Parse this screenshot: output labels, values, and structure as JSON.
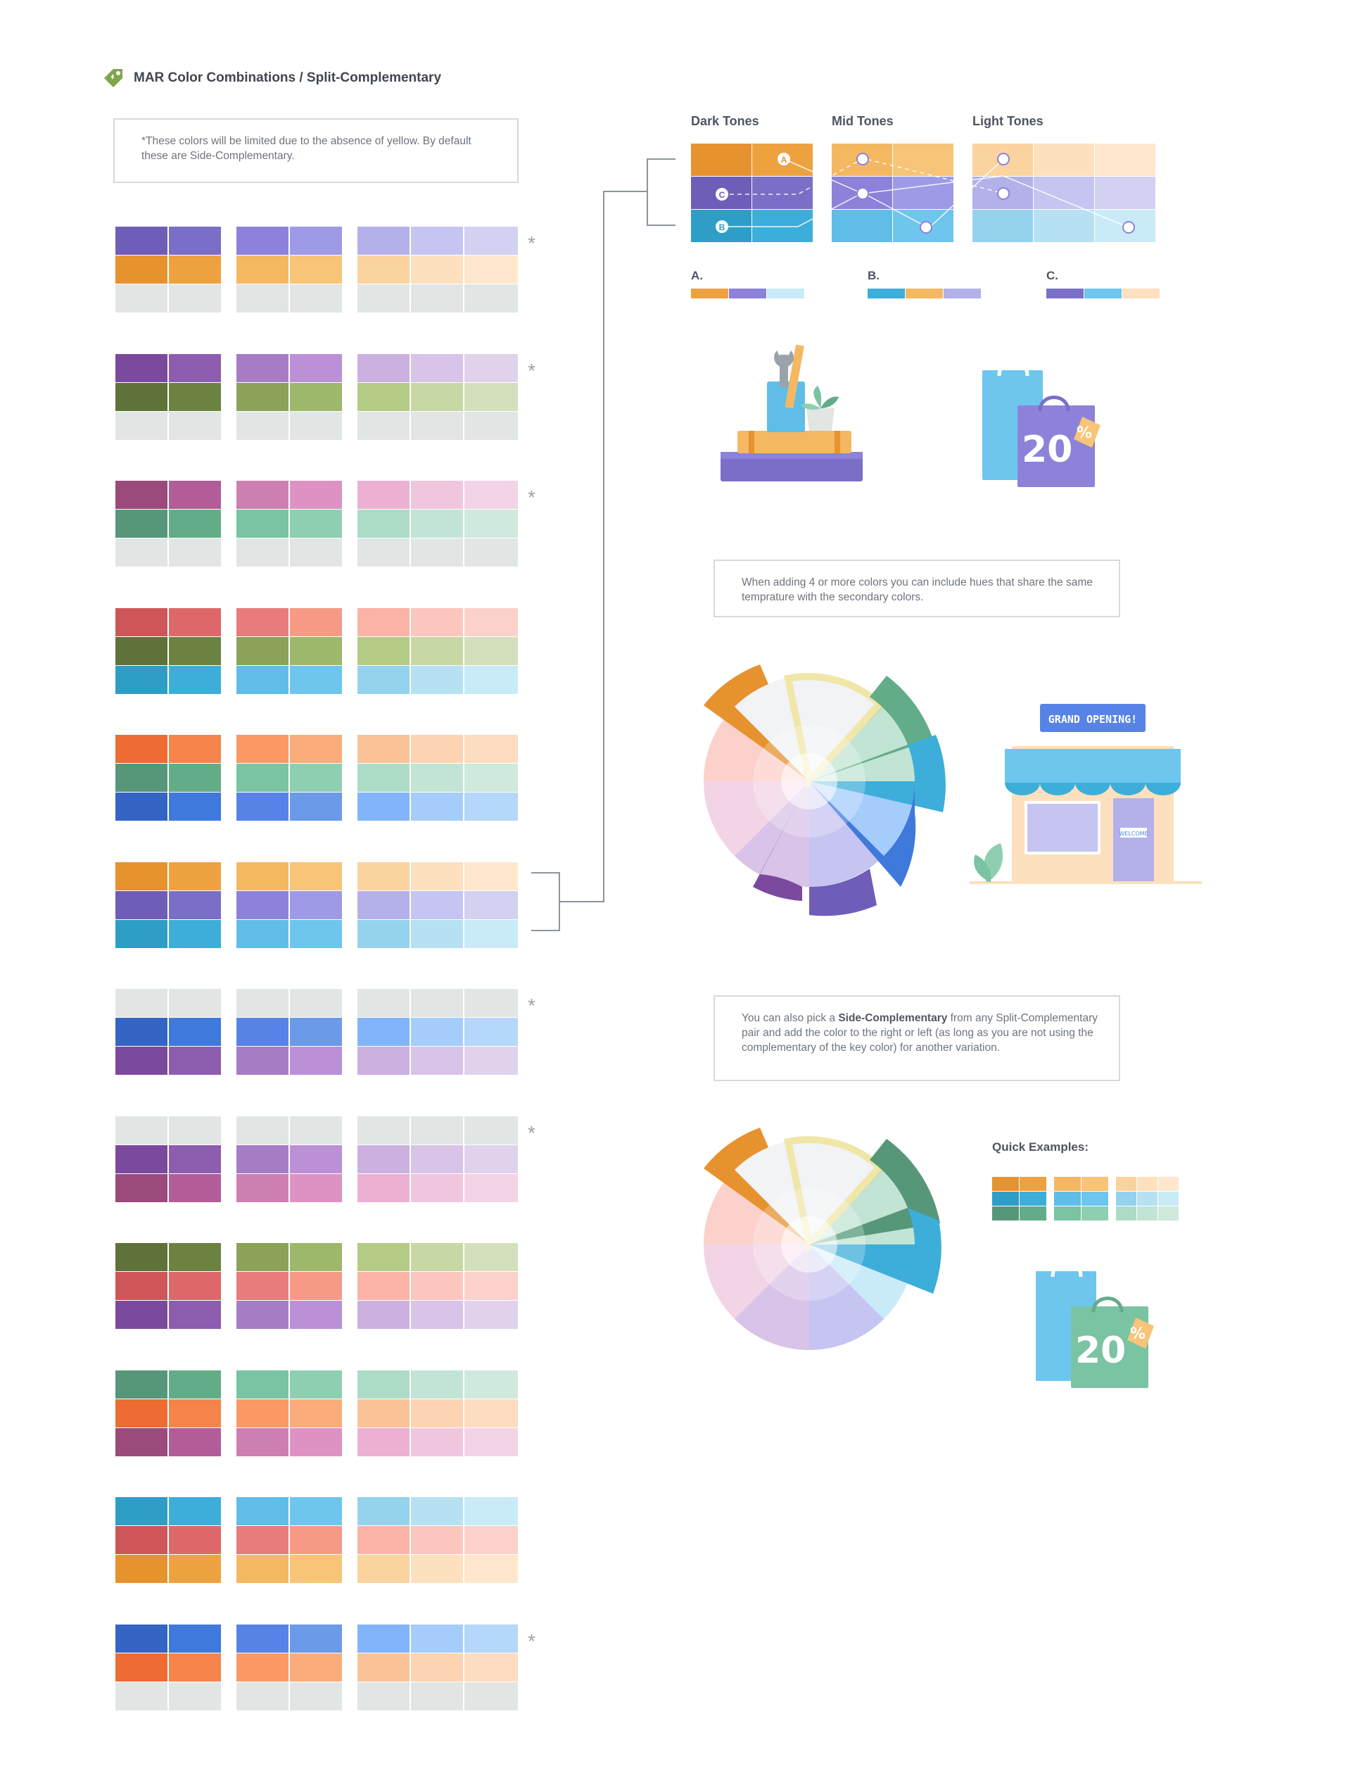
{
  "header": {
    "title": "MAR Color Combinations / Split-Complementary",
    "icon": "tag-icon"
  },
  "notes": {
    "yellow_note": "*These colors will be limited due to the absence of yellow. By default these are Side-Complementary.",
    "temperature_note": "When adding 4 or more colors you can include hues that share the same temprature with the secondary colors.",
    "side_note_pre": "You can also pick a ",
    "side_note_bold": "Side-Complementary",
    "side_note_post": " from any Split-Complementary pair and add the color to the right or left (as long as you are not using the complementary of the key color) for another variation."
  },
  "tones": {
    "dark": "Dark Tones",
    "mid": "Mid Tones",
    "light": "Light Tones"
  },
  "markers": {
    "a": "A",
    "b": "B",
    "c": "C"
  },
  "combo_labels": {
    "a": "A.",
    "b": "B.",
    "c": "C."
  },
  "quick_examples": "Quick Examples:",
  "illustrations": {
    "sign": "GRAND OPENING!",
    "welcome": "WELCOME",
    "discount": "20",
    "percent": "%"
  },
  "star": "*",
  "palette_rows": [
    {
      "star": true,
      "rows": [
        [
          "#6f5db8",
          "#7a6fc7",
          "#8c82d9",
          "#9d9ae6",
          "#b3b0ea",
          "#c6c4f0",
          "#d2d1f2"
        ],
        [
          "#e6922f",
          "#eea23f",
          "#f5b862",
          "#f8c478",
          "#fbd39e",
          "#fde0bd",
          "#fee7cd"
        ],
        [
          "#e1e6e5",
          "#e1e6e5",
          "#e1e6e5",
          "#e1e6e5",
          "#e1e6e5",
          "#e1e6e5",
          "#e1e6e5"
        ]
      ]
    },
    {
      "star": true,
      "rows": [
        [
          "#7b4a9e",
          "#8d5db0",
          "#a67cc4",
          "#bb90d6",
          "#cbb0e0",
          "#d9c3e8",
          "#e1d2ec"
        ],
        [
          "#5e7239",
          "#6c8240",
          "#8aa358",
          "#9db86a",
          "#b3cb85",
          "#c7d8a4",
          "#d4e0bb"
        ],
        [
          "#e1e6e5",
          "#e1e6e5",
          "#e1e6e5",
          "#e1e6e5",
          "#e1e6e5",
          "#e1e6e5",
          "#e1e6e5"
        ]
      ]
    },
    {
      "star": true,
      "rows": [
        [
          "#9b4a7c",
          "#b25d97",
          "#cc7fb0",
          "#de92c3",
          "#ecb0d2",
          "#f0c6de",
          "#f3d4e6"
        ],
        [
          "#56977a",
          "#62ad88",
          "#7ac3a3",
          "#8dcfb0",
          "#acdcc6",
          "#c2e4d4",
          "#cfe9dc"
        ],
        [
          "#e1e6e5",
          "#e1e6e5",
          "#e1e6e5",
          "#e1e6e5",
          "#e1e6e5",
          "#e1e6e5",
          "#e1e6e5"
        ]
      ]
    },
    {
      "star": false,
      "rows": [
        [
          "#cf5658",
          "#de6869",
          "#e87b7b",
          "#f79a85",
          "#fbb3a8",
          "#fcc6be",
          "#fcd1cb"
        ],
        [
          "#5e7239",
          "#6c8240",
          "#8aa358",
          "#9db86a",
          "#b3cb85",
          "#c7d8a4",
          "#d4e0bb"
        ],
        [
          "#2e9ec7",
          "#3daed9",
          "#5fbde8",
          "#6ec6ee",
          "#94d2ee",
          "#b6e1f3",
          "#c9ebf7"
        ]
      ]
    },
    {
      "star": false,
      "rows": [
        [
          "#ee6b33",
          "#f6844a",
          "#fb9966",
          "#fcab7b",
          "#fcc298",
          "#fdd3b2",
          "#fedcc2"
        ],
        [
          "#56977a",
          "#62ad88",
          "#7ac3a3",
          "#8dcfb0",
          "#acdcc6",
          "#c2e4d4",
          "#cfe9dc"
        ],
        [
          "#3465c5",
          "#3f79dc",
          "#5783e6",
          "#6a9ae8",
          "#82b4fb",
          "#a5cdfc",
          "#b6d7fc"
        ]
      ]
    },
    {
      "star": false,
      "rows": [
        [
          "#e6922f",
          "#eea23f",
          "#f5b862",
          "#f8c478",
          "#fbd39e",
          "#fde0bd",
          "#fee7cd"
        ],
        [
          "#6f5db8",
          "#7a6fc7",
          "#8c82d9",
          "#9d9ae6",
          "#b3b0ea",
          "#c6c4f0",
          "#d2d1f2"
        ],
        [
          "#2e9ec7",
          "#3daed9",
          "#5fbde8",
          "#6ec6ee",
          "#94d2ee",
          "#b6e1f3",
          "#c9ebf7"
        ]
      ]
    },
    {
      "star": true,
      "rows": [
        [
          "#e1e6e5",
          "#e1e6e5",
          "#e1e6e5",
          "#e1e6e5",
          "#e1e6e5",
          "#e1e6e5",
          "#e1e6e5"
        ],
        [
          "#3465c5",
          "#3f79dc",
          "#5783e6",
          "#6a9ae8",
          "#82b4fb",
          "#a5cdfc",
          "#b6d7fc"
        ],
        [
          "#7b4a9e",
          "#8d5db0",
          "#a67cc4",
          "#bb90d6",
          "#cbb0e0",
          "#d9c3e8",
          "#e1d2ec"
        ]
      ]
    },
    {
      "star": true,
      "rows": [
        [
          "#e1e6e5",
          "#e1e6e5",
          "#e1e6e5",
          "#e1e6e5",
          "#e1e6e5",
          "#e1e6e5",
          "#e1e6e5"
        ],
        [
          "#7b4a9e",
          "#8d5db0",
          "#a67cc4",
          "#bb90d6",
          "#cbb0e0",
          "#d9c3e8",
          "#e1d2ec"
        ],
        [
          "#9b4a7c",
          "#b25d97",
          "#cc7fb0",
          "#de92c3",
          "#ecb0d2",
          "#f0c6de",
          "#f3d4e6"
        ]
      ]
    },
    {
      "star": false,
      "rows": [
        [
          "#5e7239",
          "#6c8240",
          "#8aa358",
          "#9db86a",
          "#b3cb85",
          "#c7d8a4",
          "#d4e0bb"
        ],
        [
          "#cf5658",
          "#de6869",
          "#e87b7b",
          "#f79a85",
          "#fbb3a8",
          "#fcc6be",
          "#fcd1cb"
        ],
        [
          "#7b4a9e",
          "#8d5db0",
          "#a67cc4",
          "#bb90d6",
          "#cbb0e0",
          "#d9c3e8",
          "#e1d2ec"
        ]
      ]
    },
    {
      "star": false,
      "rows": [
        [
          "#56977a",
          "#62ad88",
          "#7ac3a3",
          "#8dcfb0",
          "#acdcc6",
          "#c2e4d4",
          "#cfe9dc"
        ],
        [
          "#ee6b33",
          "#f6844a",
          "#fb9966",
          "#fcab7b",
          "#fcc298",
          "#fdd3b2",
          "#fedcc2"
        ],
        [
          "#9b4a7c",
          "#b25d97",
          "#cc7fb0",
          "#de92c3",
          "#ecb0d2",
          "#f0c6de",
          "#f3d4e6"
        ]
      ]
    },
    {
      "star": false,
      "rows": [
        [
          "#2e9ec7",
          "#3daed9",
          "#5fbde8",
          "#6ec6ee",
          "#94d2ee",
          "#b6e1f3",
          "#c9ebf7"
        ],
        [
          "#cf5658",
          "#de6869",
          "#e87b7b",
          "#f79a85",
          "#fbb3a8",
          "#fcc6be",
          "#fcd1cb"
        ],
        [
          "#e6922f",
          "#eea23f",
          "#f5b862",
          "#f8c478",
          "#fbd39e",
          "#fde0bd",
          "#fee7cd"
        ]
      ]
    },
    {
      "star": true,
      "rows": [
        [
          "#3465c5",
          "#3f79dc",
          "#5783e6",
          "#6a9ae8",
          "#82b4fb",
          "#a5cdfc",
          "#b6d7fc"
        ],
        [
          "#ee6b33",
          "#f6844a",
          "#fb9966",
          "#fcab7b",
          "#fcc298",
          "#fdd3b2",
          "#fedcc2"
        ],
        [
          "#e1e6e5",
          "#e1e6e5",
          "#e1e6e5",
          "#e1e6e5",
          "#e1e6e5",
          "#e1e6e5",
          "#e1e6e5"
        ]
      ]
    }
  ],
  "tone_grid": {
    "dark": [
      [
        "#e6922f",
        "#eea23f"
      ],
      [
        "#6f5db8",
        "#7a6fc7"
      ],
      [
        "#2e9ec7",
        "#3daed9"
      ]
    ],
    "mid": [
      [
        "#f5b862",
        "#f8c478"
      ],
      [
        "#8c82d9",
        "#9d9ae6"
      ],
      [
        "#5fbde8",
        "#6ec6ee"
      ]
    ],
    "light": [
      [
        "#fbd39e",
        "#fde0bd",
        "#fee7cd"
      ],
      [
        "#b3b0ea",
        "#c6c4f0",
        "#d2d1f2"
      ],
      [
        "#94d2ee",
        "#b6e1f3",
        "#c9ebf7"
      ]
    ]
  },
  "combos": {
    "a": [
      "#eea23f",
      "#8c82d9",
      "#c9ebf7"
    ],
    "b": [
      "#3daed9",
      "#f5b862",
      "#b3b0ea"
    ],
    "c": [
      "#7a6fc7",
      "#6ec6ee",
      "#fde0bd"
    ]
  },
  "quick_swatches": [
    [
      [
        "#e6922f",
        "#eea23f"
      ],
      [
        "#2e9ec7",
        "#3daed9"
      ],
      [
        "#56977a",
        "#62ad88"
      ]
    ],
    [
      [
        "#f5b862",
        "#f8c478"
      ],
      [
        "#5fbde8",
        "#6ec6ee"
      ],
      [
        "#7ac3a3",
        "#8dcfb0"
      ]
    ],
    [
      [
        "#fbd39e",
        "#fde0bd",
        "#fee7cd"
      ],
      [
        "#94d2ee",
        "#b6e1f3",
        "#c9ebf7"
      ],
      [
        "#acdcc6",
        "#c2e4d4",
        "#cfe9dc"
      ]
    ]
  ]
}
